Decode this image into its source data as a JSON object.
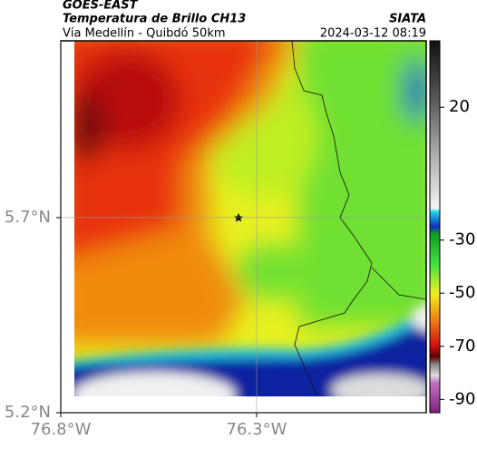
{
  "header": {
    "title": "GOES-EAST",
    "subtitle": "Temperatura de Brillo CH13",
    "route": "Vía Medellín - Quibdó 50km",
    "source": "SIATA",
    "timestamp": "2024-03-12 08:19"
  },
  "map": {
    "xlim": [
      -76.8,
      -75.867
    ],
    "ylim": [
      5.2,
      6.153
    ],
    "xticks": [
      {
        "value": -76.8,
        "label": "76.8°W"
      },
      {
        "value": -76.3,
        "label": "76.3°W"
      }
    ],
    "yticks": [
      {
        "value": 5.7,
        "label": "5.7°N"
      },
      {
        "value": 5.2,
        "label": "5.2°N"
      }
    ],
    "grid": true
  },
  "colorbar": {
    "clim": [
      -95,
      45
    ],
    "ticks": [
      20,
      -30,
      -50,
      -70,
      -90
    ]
  }
}
